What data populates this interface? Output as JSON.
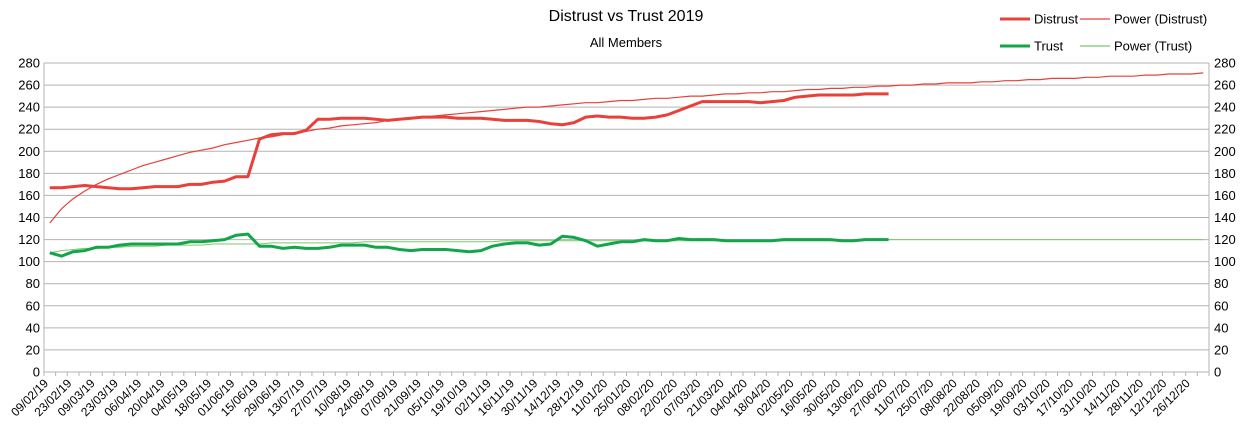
{
  "title": "Distrust vs Trust 2019",
  "subtitle": "All Members",
  "legend": {
    "position": "top-right",
    "items": [
      {
        "label": "Distrust",
        "color": "#e8403a",
        "style": "thick"
      },
      {
        "label": "Power (Distrust)",
        "color": "#e8403a",
        "style": "thin"
      },
      {
        "label": "Trust",
        "color": "#12a54a",
        "style": "thick"
      },
      {
        "label": "Power (Trust)",
        "color": "#7dc86b",
        "style": "thin"
      }
    ]
  },
  "chart_data": {
    "type": "line",
    "title": "Distrust vs Trust 2019",
    "subtitle": "All Members",
    "ylim": [
      0,
      280
    ],
    "y_ticks": [
      0,
      20,
      40,
      60,
      80,
      100,
      120,
      140,
      160,
      180,
      200,
      220,
      240,
      260,
      280
    ],
    "secondary_y_axis": true,
    "grid": "horizontal",
    "legend": "top-right",
    "x_tick_labels": [
      "09/02/19",
      "23/02/19",
      "09/03/19",
      "23/03/19",
      "06/04/19",
      "20/04/19",
      "04/05/19",
      "18/05/19",
      "01/06/19",
      "15/06/19",
      "29/06/19",
      "13/07/19",
      "27/07/19",
      "10/08/19",
      "24/08/19",
      "07/09/19",
      "21/09/19",
      "05/10/19",
      "19/10/19",
      "02/11/19",
      "16/11/19",
      "30/11/19",
      "14/12/19",
      "28/12/19",
      "11/01/20",
      "25/01/20",
      "08/02/20",
      "22/02/20",
      "07/03/20",
      "21/03/20",
      "04/04/20",
      "18/04/20",
      "02/05/20",
      "16/05/20",
      "30/05/20",
      "13/06/20",
      "27/06/20",
      "11/07/20",
      "25/07/20",
      "08/08/20",
      "22/08/20",
      "05/09/20",
      "19/09/20",
      "03/10/20",
      "17/10/20",
      "31/10/20",
      "14/11/20",
      "28/11/20",
      "12/12/20",
      "26/12/20"
    ],
    "series": [
      {
        "name": "Distrust",
        "color": "#e8403a",
        "values": [
          167,
          167,
          168,
          169,
          168,
          167,
          166,
          166,
          167,
          168,
          168,
          168,
          170,
          170,
          172,
          173,
          177,
          177,
          211,
          215,
          216,
          216,
          219,
          229,
          229,
          230,
          230,
          230,
          229,
          228,
          229,
          230,
          231,
          231,
          231,
          230,
          230,
          230,
          229,
          228,
          228,
          228,
          227,
          225,
          224,
          226,
          231,
          232,
          231,
          231,
          230,
          230,
          231,
          233,
          237,
          241,
          245,
          245,
          245,
          245,
          245,
          244,
          245,
          246,
          249,
          250,
          251,
          251,
          251,
          251,
          252,
          252,
          252
        ]
      },
      {
        "name": "Power (Distrust)",
        "color": "#e8403a",
        "trendline": "power",
        "values": [
          135,
          148,
          157,
          164,
          170,
          175,
          179,
          183,
          187,
          190,
          193,
          196,
          199,
          201,
          203,
          206,
          208,
          210,
          212,
          213,
          215,
          217,
          218,
          220,
          221,
          223,
          224,
          225,
          226,
          228,
          229,
          230,
          231,
          232,
          233,
          234,
          235,
          236,
          237,
          238,
          239,
          240,
          240,
          241,
          242,
          243,
          244,
          244,
          245,
          246,
          246,
          247,
          248,
          248,
          249,
          250,
          250,
          251,
          252,
          252,
          253,
          253,
          254,
          254,
          255,
          256,
          256,
          257,
          257,
          258,
          258,
          259,
          259,
          260,
          260,
          261,
          261,
          262,
          262,
          262,
          263,
          263,
          264,
          264,
          265,
          265,
          266,
          266,
          266,
          267,
          267,
          268,
          268,
          268,
          269,
          269,
          270,
          270,
          270,
          271
        ]
      },
      {
        "name": "Trust",
        "color": "#12a54a",
        "values": [
          108,
          105,
          109,
          110,
          113,
          113,
          115,
          116,
          116,
          116,
          116,
          116,
          118,
          118,
          119,
          120,
          124,
          125,
          114,
          114,
          112,
          113,
          112,
          112,
          113,
          115,
          115,
          115,
          113,
          113,
          111,
          110,
          111,
          111,
          111,
          110,
          109,
          110,
          114,
          116,
          117,
          117,
          115,
          116,
          123,
          122,
          119,
          114,
          116,
          118,
          118,
          120,
          119,
          119,
          121,
          120,
          120,
          120,
          119,
          119,
          119,
          119,
          119,
          120,
          120,
          120,
          120,
          120,
          119,
          119,
          120,
          120,
          120
        ]
      },
      {
        "name": "Power (Trust)",
        "color": "#7dc86b",
        "trendline": "power",
        "values": [
          108,
          110,
          111,
          112,
          112,
          113,
          113,
          114,
          114,
          114,
          115,
          115,
          115,
          115,
          116,
          116,
          116,
          116,
          116,
          117,
          117,
          117,
          117,
          117,
          117,
          117,
          117,
          118,
          118,
          118,
          118,
          118,
          118,
          118,
          118,
          118,
          118,
          118,
          118,
          119,
          119,
          119,
          119,
          119,
          119,
          119,
          119,
          119,
          119,
          119,
          119,
          119,
          119,
          119,
          119,
          119,
          119,
          119,
          119,
          119,
          119,
          119,
          119,
          119,
          119,
          119,
          119,
          119,
          119,
          120,
          120,
          120,
          120,
          120,
          120,
          120,
          120,
          120,
          120,
          120,
          120,
          120,
          120,
          120,
          120,
          120,
          120,
          120,
          120,
          120,
          120,
          120,
          120,
          120,
          120,
          120,
          120,
          120,
          120,
          120
        ]
      }
    ]
  }
}
